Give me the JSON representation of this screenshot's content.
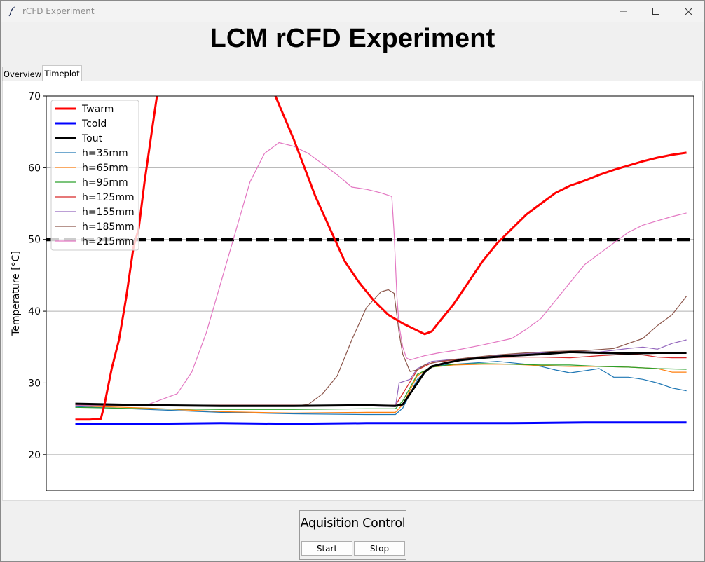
{
  "window": {
    "title": "rCFD Experiment"
  },
  "heading": "LCM rCFD Experiment",
  "tabs": [
    {
      "label": "Overview",
      "active": false
    },
    {
      "label": "Timeplot",
      "active": true
    }
  ],
  "acquisition": {
    "group_label": "Aquisition Control",
    "start_label": "Start",
    "stop_label": "Stop"
  },
  "chart_data": {
    "type": "line",
    "title": "",
    "xlabel": "",
    "ylabel": "Temperature [°C]",
    "ylim": [
      15,
      70
    ],
    "xlim": [
      -4,
      85
    ],
    "x_ticks_visible": false,
    "y_ticks": [
      20,
      30,
      40,
      50,
      60,
      70
    ],
    "grid": "horizontal",
    "legend": "top-left",
    "reference_line": {
      "y": 50,
      "style": "dashed",
      "color": "#000000"
    },
    "series": [
      {
        "name": "Twarm",
        "color": "#ff0000",
        "width": 3,
        "points": [
          [
            0,
            24.9
          ],
          [
            2,
            24.9
          ],
          [
            3.5,
            25
          ],
          [
            4,
            27
          ],
          [
            4.5,
            29.5
          ],
          [
            5,
            32
          ],
          [
            5.5,
            34
          ],
          [
            6,
            36
          ],
          [
            7,
            42
          ],
          [
            8,
            49
          ],
          [
            8.7,
            51.5
          ],
          [
            9.5,
            58
          ],
          [
            10.5,
            65
          ],
          [
            11.5,
            72
          ],
          [
            12,
            76
          ],
          [
            26,
            76
          ],
          [
            27.5,
            70
          ],
          [
            30,
            64
          ],
          [
            33,
            56
          ],
          [
            35,
            51.5
          ],
          [
            37,
            47
          ],
          [
            39,
            44
          ],
          [
            41,
            41.5
          ],
          [
            43,
            39.5
          ],
          [
            45,
            38.3
          ],
          [
            47,
            37.3
          ],
          [
            48,
            36.8
          ],
          [
            49,
            37.2
          ],
          [
            50,
            38.5
          ],
          [
            52,
            41
          ],
          [
            54,
            44
          ],
          [
            56,
            47
          ],
          [
            58,
            49.5
          ],
          [
            60,
            51.5
          ],
          [
            62,
            53.5
          ],
          [
            64,
            55
          ],
          [
            66,
            56.5
          ],
          [
            68,
            57.5
          ],
          [
            70,
            58.2
          ],
          [
            72,
            59
          ],
          [
            74,
            59.7
          ],
          [
            76,
            60.3
          ],
          [
            78,
            60.9
          ],
          [
            80,
            61.4
          ],
          [
            82,
            61.8
          ],
          [
            84,
            62.1
          ]
        ]
      },
      {
        "name": "Tcold",
        "color": "#0000ff",
        "width": 3,
        "points": [
          [
            0,
            24.3
          ],
          [
            10,
            24.3
          ],
          [
            20,
            24.4
          ],
          [
            30,
            24.3
          ],
          [
            40,
            24.4
          ],
          [
            50,
            24.4
          ],
          [
            60,
            24.4
          ],
          [
            70,
            24.5
          ],
          [
            80,
            24.5
          ],
          [
            84,
            24.5
          ]
        ]
      },
      {
        "name": "Tout",
        "color": "#000000",
        "width": 3,
        "points": [
          [
            0,
            27.1
          ],
          [
            10,
            26.9
          ],
          [
            20,
            26.8
          ],
          [
            30,
            26.8
          ],
          [
            40,
            26.9
          ],
          [
            44,
            26.8
          ],
          [
            45,
            27
          ],
          [
            46,
            28.5
          ],
          [
            47,
            30
          ],
          [
            48,
            31.5
          ],
          [
            49,
            32.3
          ],
          [
            51,
            32.8
          ],
          [
            53,
            33.2
          ],
          [
            56,
            33.5
          ],
          [
            60,
            33.8
          ],
          [
            64,
            34
          ],
          [
            68,
            34.3
          ],
          [
            72,
            34.2
          ],
          [
            76,
            34.1
          ],
          [
            80,
            34.2
          ],
          [
            84,
            34.2
          ]
        ]
      },
      {
        "name": "h=35mm",
        "color": "#1f77b4",
        "width": 1.2,
        "points": [
          [
            0,
            26.7
          ],
          [
            10,
            26.3
          ],
          [
            20,
            25.9
          ],
          [
            30,
            25.7
          ],
          [
            40,
            25.6
          ],
          [
            44,
            25.6
          ],
          [
            45,
            26.5
          ],
          [
            47,
            30.5
          ],
          [
            49,
            32.4
          ],
          [
            52,
            32.6
          ],
          [
            55,
            32.8
          ],
          [
            58,
            33
          ],
          [
            62,
            32.6
          ],
          [
            64,
            32.3
          ],
          [
            66,
            31.8
          ],
          [
            68,
            31.4
          ],
          [
            70,
            31.7
          ],
          [
            72,
            32
          ],
          [
            74,
            30.8
          ],
          [
            76,
            30.8
          ],
          [
            78,
            30.5
          ],
          [
            80,
            30
          ],
          [
            82,
            29.3
          ],
          [
            84,
            28.9
          ]
        ]
      },
      {
        "name": "h=65mm",
        "color": "#ff7f0e",
        "width": 1.2,
        "points": [
          [
            0,
            26.8
          ],
          [
            10,
            26.5
          ],
          [
            20,
            26
          ],
          [
            30,
            25.8
          ],
          [
            40,
            25.9
          ],
          [
            44,
            25.9
          ],
          [
            45,
            27
          ],
          [
            47,
            31
          ],
          [
            49,
            32.2
          ],
          [
            52,
            32.5
          ],
          [
            56,
            32.6
          ],
          [
            60,
            32.6
          ],
          [
            64,
            32.4
          ],
          [
            68,
            32.3
          ],
          [
            72,
            32.3
          ],
          [
            76,
            32.2
          ],
          [
            80,
            32
          ],
          [
            82,
            31.5
          ],
          [
            84,
            31.5
          ]
        ]
      },
      {
        "name": "h=95mm",
        "color": "#2ca02c",
        "width": 1.2,
        "points": [
          [
            0,
            26.6
          ],
          [
            10,
            26.4
          ],
          [
            20,
            26.3
          ],
          [
            30,
            26.3
          ],
          [
            40,
            26.4
          ],
          [
            44,
            26.4
          ],
          [
            45,
            27.5
          ],
          [
            47,
            31.2
          ],
          [
            49,
            32.2
          ],
          [
            52,
            32.6
          ],
          [
            56,
            32.7
          ],
          [
            60,
            32.6
          ],
          [
            64,
            32.5
          ],
          [
            68,
            32.5
          ],
          [
            72,
            32.3
          ],
          [
            76,
            32.2
          ],
          [
            80,
            32
          ],
          [
            84,
            31.9
          ]
        ]
      },
      {
        "name": "h=125mm",
        "color": "#d62728",
        "width": 1.2,
        "points": [
          [
            0,
            27
          ],
          [
            10,
            26.9
          ],
          [
            20,
            26.9
          ],
          [
            30,
            26.9
          ],
          [
            40,
            26.9
          ],
          [
            44,
            26.9
          ],
          [
            45,
            28.5
          ],
          [
            47,
            31.8
          ],
          [
            49,
            32.8
          ],
          [
            52,
            33.2
          ],
          [
            56,
            33.5
          ],
          [
            60,
            33.6
          ],
          [
            64,
            33.6
          ],
          [
            68,
            33.5
          ],
          [
            72,
            33.8
          ],
          [
            76,
            34
          ],
          [
            78,
            33.9
          ],
          [
            80,
            33.6
          ],
          [
            82,
            33.5
          ],
          [
            84,
            33.5
          ]
        ]
      },
      {
        "name": "h=155mm",
        "color": "#9467bd",
        "width": 1.2,
        "points": [
          [
            0,
            26.9
          ],
          [
            10,
            26.8
          ],
          [
            20,
            26.8
          ],
          [
            30,
            26.8
          ],
          [
            40,
            26.8
          ],
          [
            44,
            26.7
          ],
          [
            44.5,
            30
          ],
          [
            46,
            30.5
          ],
          [
            47,
            32
          ],
          [
            49,
            33
          ],
          [
            52,
            33.3
          ],
          [
            56,
            33.6
          ],
          [
            60,
            34
          ],
          [
            64,
            34.2
          ],
          [
            68,
            34.4
          ],
          [
            72,
            34.3
          ],
          [
            76,
            34.8
          ],
          [
            78,
            35
          ],
          [
            80,
            34.7
          ],
          [
            82,
            35.5
          ],
          [
            84,
            36
          ]
        ]
      },
      {
        "name": "h=185mm",
        "color": "#8c564b",
        "width": 1.2,
        "points": [
          [
            0,
            26.9
          ],
          [
            10,
            26.8
          ],
          [
            20,
            26.8
          ],
          [
            30,
            26.8
          ],
          [
            32,
            27
          ],
          [
            34,
            28.5
          ],
          [
            36,
            31
          ],
          [
            38,
            36
          ],
          [
            40,
            40.5
          ],
          [
            42,
            42.7
          ],
          [
            43,
            43
          ],
          [
            43.8,
            42.5
          ],
          [
            44.5,
            37
          ],
          [
            45,
            34
          ],
          [
            46,
            31.6
          ],
          [
            47,
            31.8
          ],
          [
            48,
            32.5
          ],
          [
            50,
            33
          ],
          [
            54,
            33.5
          ],
          [
            58,
            33.9
          ],
          [
            62,
            34.2
          ],
          [
            66,
            34.4
          ],
          [
            70,
            34.5
          ],
          [
            74,
            34.8
          ],
          [
            76,
            35.5
          ],
          [
            78,
            36.2
          ],
          [
            80,
            38
          ],
          [
            82,
            39.5
          ],
          [
            84,
            42.1
          ]
        ]
      },
      {
        "name": "h=215mm",
        "color": "#e377c2",
        "width": 1.2,
        "points": [
          [
            0,
            26.9
          ],
          [
            6,
            26.9
          ],
          [
            10,
            27
          ],
          [
            14,
            28.5
          ],
          [
            16,
            31.5
          ],
          [
            18,
            37
          ],
          [
            20,
            44
          ],
          [
            22,
            51
          ],
          [
            24,
            58
          ],
          [
            26,
            62
          ],
          [
            28,
            63.5
          ],
          [
            30,
            63
          ],
          [
            32,
            62
          ],
          [
            34,
            60.5
          ],
          [
            36,
            59
          ],
          [
            38,
            57.3
          ],
          [
            40,
            57
          ],
          [
            42,
            56.5
          ],
          [
            43.5,
            56
          ],
          [
            43.8,
            51
          ],
          [
            44.2,
            42
          ],
          [
            44.5,
            38
          ],
          [
            45,
            35
          ],
          [
            45.5,
            33.5
          ],
          [
            46,
            33.2
          ],
          [
            48,
            33.8
          ],
          [
            50,
            34.2
          ],
          [
            52,
            34.5
          ],
          [
            56,
            35.3
          ],
          [
            60,
            36.2
          ],
          [
            62,
            37.5
          ],
          [
            64,
            39
          ],
          [
            66,
            41.5
          ],
          [
            68,
            44
          ],
          [
            70,
            46.5
          ],
          [
            72,
            48
          ],
          [
            74,
            49.5
          ],
          [
            76,
            51
          ],
          [
            78,
            52
          ],
          [
            80,
            52.6
          ],
          [
            82,
            53.2
          ],
          [
            84,
            53.7
          ]
        ]
      }
    ]
  }
}
